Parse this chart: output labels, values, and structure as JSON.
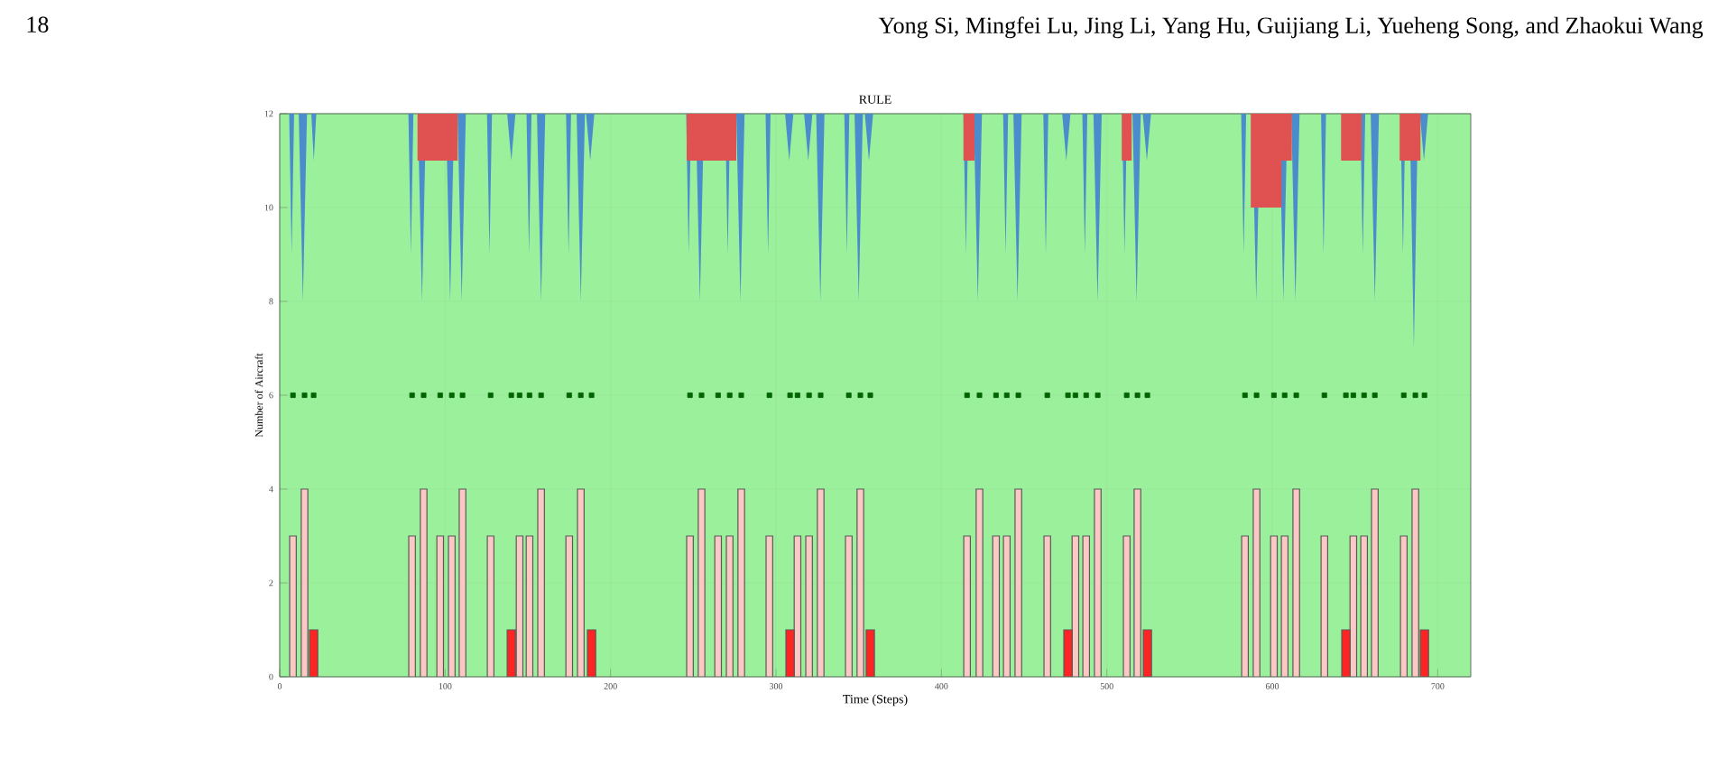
{
  "chart_data": {
    "type": "bar",
    "title": "RULE",
    "xlabel": "Time (Steps)",
    "ylabel": "Number of Aircraft",
    "annotations": [
      "18",
      "Yong Si, Mingfei Lu, Jing Li, Yang Hu, Guijiang Li, Yueheng Song, and Zhaokui Wang"
    ],
    "xlim": [
      0,
      720
    ],
    "xticks": [
      0,
      100,
      200,
      300,
      400,
      500,
      600,
      700
    ],
    "ylim": [
      0,
      12
    ],
    "yticks": [
      0,
      2,
      4,
      6,
      8,
      10,
      12
    ],
    "grid": true,
    "bands": [
      {
        "axis": "y",
        "from": 0,
        "to": 12,
        "color": "#9bf09b"
      }
    ],
    "series": [
      {
        "type": "area",
        "color": "#4a8ccc",
        "x": [
          5.7,
          7.2,
          8.7,
          11.5,
          14,
          16.5,
          19.1,
          20.6,
          22.1,
          77.8,
          79.3,
          80.8,
          83.5,
          86,
          88.5,
          100.5,
          103,
          105.5,
          107.5,
          110,
          112.5,
          125.3,
          126.8,
          128.3,
          137.5,
          140,
          142.5,
          149.2,
          150.7,
          152.2,
          155.5,
          158,
          160.5,
          173.1,
          174.6,
          176.1,
          179.5,
          182,
          184.5,
          185.2,
          187.7,
          190.2,
          245.7,
          247.2,
          248.7,
          251.5,
          254,
          256.5,
          269.3,
          270.8,
          272.3,
          276,
          278.5,
          281,
          293.7,
          295.2,
          296.7,
          305.5,
          308,
          310.5,
          317,
          319.5,
          322,
          324.3,
          326.8,
          329.3,
          341.3,
          342.8,
          344.3,
          347.5,
          350,
          352.5,
          353.7,
          356.2,
          358.7,
          413.3,
          414.8,
          416.3,
          419.5,
          422,
          424.5,
          437.3,
          438.8,
          440.3,
          443.5,
          446,
          448.5,
          461.6,
          463.1,
          464.6,
          473,
          475.5,
          478,
          485.2,
          486.7,
          488.2,
          491.9,
          494.4,
          496.9,
          509.2,
          510.7,
          512.2,
          515.5,
          518,
          520.5,
          521.7,
          524.2,
          526.7,
          581.2,
          582.7,
          584.2,
          587.8,
          590.3,
          592.8,
          604.2,
          606.7,
          609.2,
          611.5,
          614,
          616.5,
          629.5,
          631,
          632.5,
          653.2,
          654.7,
          656.2,
          659.5,
          662,
          664.5,
          677.5,
          679,
          680.5,
          683.1,
          685.6,
          688.1,
          689.2,
          691.7,
          694.2
        ],
        "values": [
          12,
          9,
          12,
          12,
          8,
          12,
          12,
          11,
          12,
          12,
          9,
          12,
          12,
          8,
          12,
          12,
          8,
          12,
          12,
          8,
          12,
          12,
          9,
          12,
          12,
          11,
          12,
          12,
          9,
          12,
          12,
          8,
          12,
          12,
          9,
          12,
          12,
          8,
          12,
          12,
          11,
          12,
          12,
          9,
          12,
          12,
          8,
          12,
          12,
          9,
          12,
          12,
          8,
          12,
          12,
          9,
          12,
          12,
          11,
          12,
          12,
          11,
          12,
          12,
          8,
          12,
          12,
          9,
          12,
          12,
          8,
          12,
          12,
          11,
          12,
          12,
          9,
          12,
          12,
          8,
          12,
          12,
          9,
          12,
          12,
          8,
          12,
          12,
          9,
          12,
          12,
          11,
          12,
          12,
          9,
          12,
          12,
          8,
          12,
          12,
          9,
          12,
          12,
          8,
          12,
          12,
          11,
          12,
          12,
          9,
          12,
          12,
          8,
          12,
          12,
          8,
          12,
          12,
          8,
          12,
          12,
          9,
          12,
          12,
          9,
          12,
          12,
          8,
          12,
          12,
          9,
          12,
          12,
          7,
          12,
          12,
          11,
          12
        ]
      },
      {
        "type": "area",
        "color": "#e05252",
        "x": [
          83.3,
          83.3,
          107.6,
          107.6,
          246,
          246,
          276,
          276,
          413.3,
          413.3,
          420,
          420,
          509,
          509,
          515,
          515,
          587,
          587,
          605.6,
          605.6,
          611.8,
          611.8,
          641.6,
          641.6,
          654,
          654,
          677,
          677,
          689.6,
          689.6
        ],
        "values": [
          12,
          11,
          11,
          12,
          12,
          11,
          11,
          12,
          12,
          11,
          11,
          12,
          12,
          11,
          11,
          12,
          12,
          10,
          10,
          11,
          11,
          12,
          12,
          11,
          11,
          12,
          12,
          11,
          11,
          12
        ]
      },
      {
        "color": "#fcc8c4",
        "x": [
          8,
          15,
          80,
          87,
          97,
          104,
          110.5,
          127.5,
          145,
          151,
          158,
          175,
          182,
          248,
          255,
          265,
          272,
          279,
          296,
          313,
          320,
          327,
          344,
          351,
          415.5,
          423,
          433,
          439.5,
          446.5,
          464,
          481,
          487.5,
          494.5,
          512,
          518.5,
          583.5,
          590.5,
          601,
          607.5,
          614.5,
          631.5,
          649,
          655.5,
          662,
          679.5,
          686.5
        ],
        "values": [
          3,
          4,
          3,
          4,
          3,
          3,
          4,
          3,
          3,
          3,
          4,
          3,
          4,
          3,
          4,
          3,
          3,
          4,
          3,
          3,
          3,
          4,
          3,
          4,
          3,
          4,
          3,
          3,
          4,
          3,
          3,
          3,
          4,
          3,
          4,
          3,
          4,
          3,
          3,
          4,
          3,
          3,
          3,
          4,
          3,
          4
        ]
      },
      {
        "color": "#ff2424",
        "x": [
          20.5,
          140,
          188.5,
          308.5,
          357,
          476.5,
          524.5,
          644.5,
          692
        ],
        "values": [
          1,
          1,
          1,
          1,
          1,
          1,
          1,
          1,
          1
        ]
      },
      {
        "type": "scatter",
        "color": "#006400",
        "marker": "square",
        "x": [
          8,
          15,
          20.5,
          80,
          87,
          97,
          104,
          110.5,
          127.5,
          140,
          145,
          151,
          158,
          175,
          182,
          188.5,
          248,
          255,
          265,
          272,
          279,
          296,
          308.5,
          313,
          320,
          327,
          344,
          351,
          357,
          415.5,
          423,
          433,
          439.5,
          446.5,
          464,
          476.5,
          481,
          487.5,
          494.5,
          512,
          518.5,
          524.5,
          583.5,
          590.5,
          601,
          607.5,
          614.5,
          631.5,
          644.5,
          649,
          655.5,
          662,
          679.5,
          686.5,
          692
        ],
        "values": [
          6,
          6,
          6,
          6,
          6,
          6,
          6,
          6,
          6,
          6,
          6,
          6,
          6,
          6,
          6,
          6,
          6,
          6,
          6,
          6,
          6,
          6,
          6,
          6,
          6,
          6,
          6,
          6,
          6,
          6,
          6,
          6,
          6,
          6,
          6,
          6,
          6,
          6,
          6,
          6,
          6,
          6,
          6,
          6,
          6,
          6,
          6,
          6,
          6,
          6,
          6,
          6,
          6,
          6,
          6
        ]
      }
    ]
  }
}
